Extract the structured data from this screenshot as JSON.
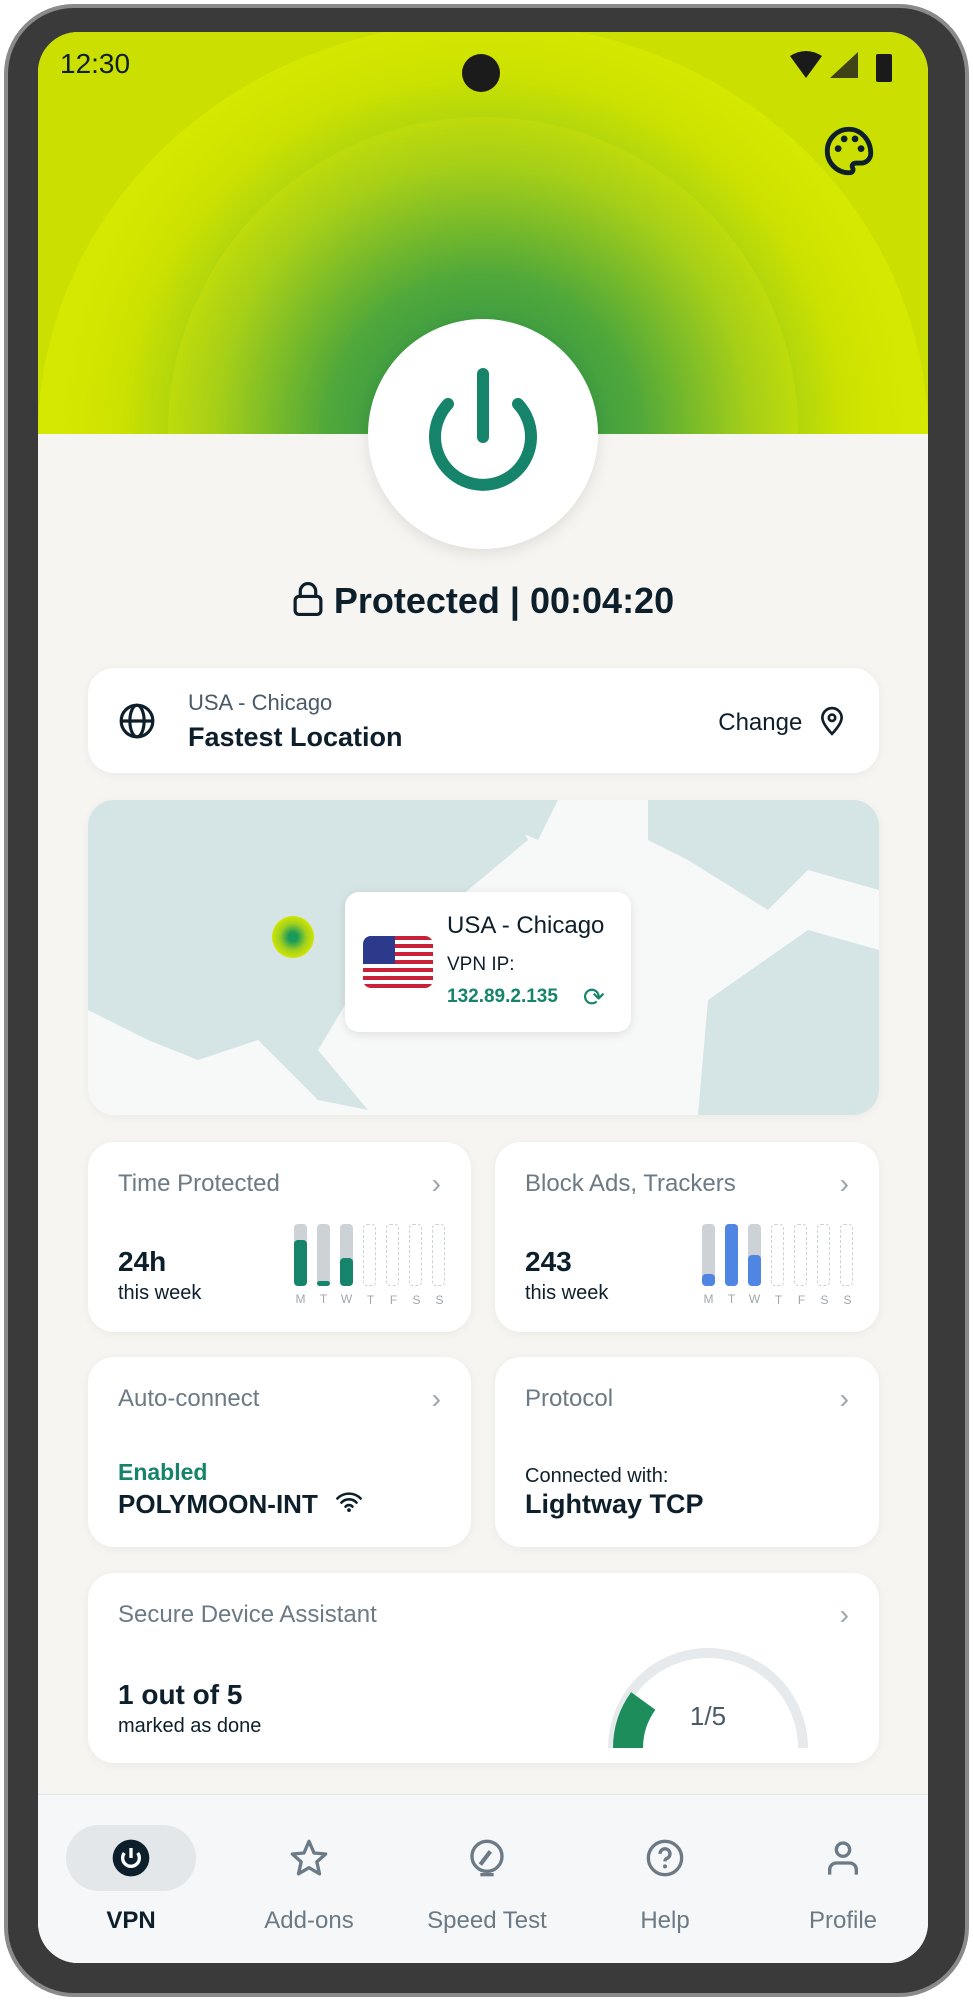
{
  "status_bar": {
    "time": "12:30"
  },
  "header": {
    "icons": [
      "palette-icon",
      "power-icon"
    ]
  },
  "status": {
    "text": "Protected | 00:04:20",
    "icon": "lock-icon"
  },
  "location": {
    "country_city": "USA - Chicago",
    "name": "Fastest Location",
    "change_label": "Change"
  },
  "map": {
    "popup_city": "USA - Chicago",
    "ip_label": "VPN IP:",
    "ip": "132.89.2.135"
  },
  "time_protected": {
    "title": "Time Protected",
    "value": "24h",
    "sub": "this week",
    "days": [
      "M",
      "T",
      "W",
      "T",
      "F",
      "S",
      "S"
    ],
    "levels": [
      0.75,
      0.08,
      0.45
    ],
    "color": "#15846a"
  },
  "block_ads": {
    "title": "Block Ads, Trackers",
    "value": "243",
    "sub": "this week",
    "days": [
      "M",
      "T",
      "W",
      "T",
      "F",
      "S",
      "S"
    ],
    "levels": [
      0.2,
      1.0,
      0.5
    ],
    "color": "#4f86e3"
  },
  "auto_connect": {
    "title": "Auto-connect",
    "state": "Enabled",
    "network": "POLYMOON-INT"
  },
  "protocol": {
    "title": "Protocol",
    "sub": "Connected with:",
    "value": "Lightway TCP"
  },
  "sda": {
    "title": "Secure Device Assistant",
    "value": "1 out of 5",
    "sub": "marked as done",
    "gauge": "1/5",
    "progress": 0.2
  },
  "nav": [
    {
      "label": "VPN",
      "icon": "power-icon",
      "active": true
    },
    {
      "label": "Add-ons",
      "icon": "star-icon"
    },
    {
      "label": "Speed Test",
      "icon": "speedometer-icon"
    },
    {
      "label": "Help",
      "icon": "help-icon"
    },
    {
      "label": "Profile",
      "icon": "user-icon"
    }
  ],
  "colors": {
    "accent": "#15846a",
    "lime": "#cbe000",
    "text": "#0e1f2c"
  }
}
